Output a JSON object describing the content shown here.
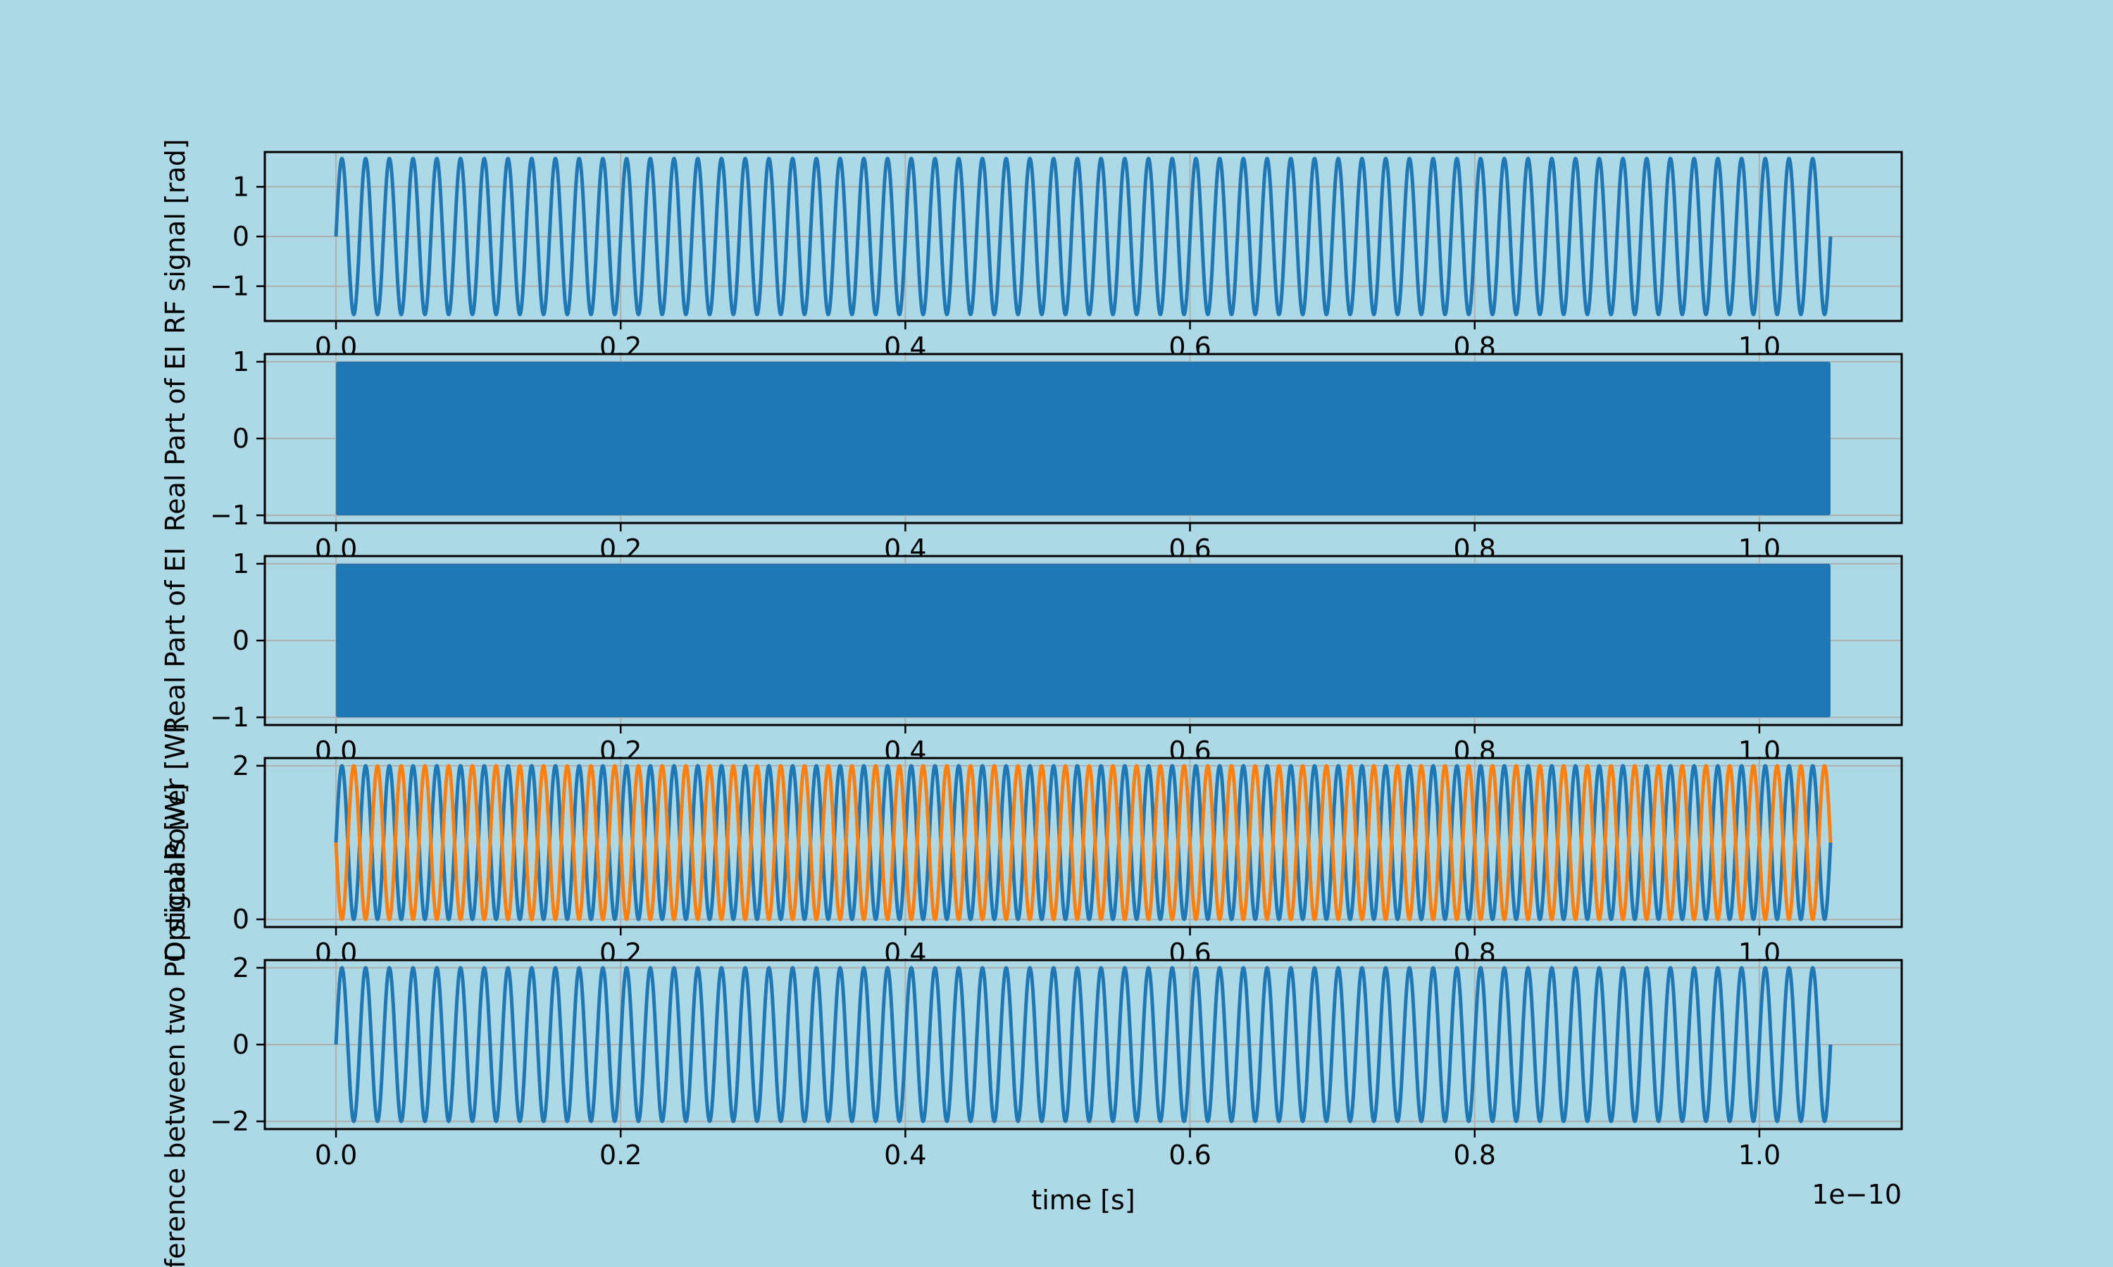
{
  "figure": {
    "background": "#add8e6",
    "series_colors": [
      "#1f77b4",
      "#ff7f0e"
    ],
    "grid_color": "#b0b0b0",
    "x_offset_text": "1e−10"
  },
  "chart_data": [
    {
      "type": "line",
      "ylabel": "RF signal [rad]",
      "xlabel": "",
      "xlim": [
        -0.05,
        1.1
      ],
      "ylim": [
        -1.7,
        1.7
      ],
      "xticks": [
        0.0,
        0.2,
        0.4,
        0.6,
        0.8,
        1.0
      ],
      "xtick_labels": [
        "0.0",
        "0.2",
        "0.4",
        "0.6",
        "0.8",
        "1.0"
      ],
      "yticks": [
        -1,
        0,
        1
      ],
      "ytick_labels": [
        "−1",
        "0",
        "1"
      ],
      "grid": true,
      "series": [
        {
          "color": "#1f77b4",
          "function": "sine",
          "amplitude": 1.57,
          "cycles": 63,
          "phase": 0,
          "offset": 0,
          "x": [
            0.0,
            1.05
          ]
        }
      ]
    },
    {
      "type": "line",
      "ylabel": "Real Part of EI",
      "xlabel": "",
      "xlim": [
        -0.05,
        1.1
      ],
      "ylim": [
        -1.1,
        1.1
      ],
      "xticks": [
        0.0,
        0.2,
        0.4,
        0.6,
        0.8,
        1.0
      ],
      "xtick_labels": [
        "0.0",
        "0.2",
        "0.4",
        "0.6",
        "0.8",
        "1.0"
      ],
      "yticks": [
        -1,
        0,
        1
      ],
      "ytick_labels": [
        "−1",
        "0",
        "1"
      ],
      "grid": true,
      "series": [
        {
          "color": "#1f77b4",
          "function": "dense carrier oscillation (unresolved)",
          "y_range": [
            -1,
            1
          ],
          "x": [
            0.0,
            1.05
          ]
        }
      ]
    },
    {
      "type": "line",
      "ylabel": "Real Part of EI",
      "xlabel": "",
      "xlim": [
        -0.05,
        1.1
      ],
      "ylim": [
        -1.1,
        1.1
      ],
      "xticks": [
        0.0,
        0.2,
        0.4,
        0.6,
        0.8,
        1.0
      ],
      "xtick_labels": [
        "0.0",
        "0.2",
        "0.4",
        "0.6",
        "0.8",
        "1.0"
      ],
      "yticks": [
        -1,
        0,
        1
      ],
      "ytick_labels": [
        "−1",
        "0",
        "1"
      ],
      "grid": true,
      "series": [
        {
          "color": "#1f77b4",
          "function": "dense carrier oscillation (unresolved)",
          "y_range": [
            -1,
            1
          ],
          "x": [
            0.0,
            1.05
          ]
        }
      ]
    },
    {
      "type": "line",
      "ylabel": "Optical Power [W]",
      "xlabel": "",
      "xlim": [
        -0.05,
        1.1
      ],
      "ylim": [
        -0.1,
        2.1
      ],
      "xticks": [
        0.0,
        0.2,
        0.4,
        0.6,
        0.8,
        1.0
      ],
      "xtick_labels": [
        "0.0",
        "0.2",
        "0.4",
        "0.6",
        "0.8",
        "1.0"
      ],
      "yticks": [
        0,
        2
      ],
      "ytick_labels": [
        "0",
        "2"
      ],
      "grid": true,
      "series": [
        {
          "color": "#1f77b4",
          "function": "sine",
          "amplitude": 1,
          "offset": 1,
          "cycles": 63,
          "phase": 0,
          "x": [
            0.0,
            1.05
          ]
        },
        {
          "color": "#ff7f0e",
          "function": "sine",
          "amplitude": 1,
          "offset": 1,
          "cycles": 63,
          "phase": 3.14159,
          "x": [
            0.0,
            1.05
          ]
        }
      ]
    },
    {
      "type": "line",
      "ylabel": "Difference between two PD signals [W]",
      "xlabel": "time [s]",
      "xlim": [
        -0.05,
        1.1
      ],
      "ylim": [
        -2.2,
        2.2
      ],
      "xticks": [
        0.0,
        0.2,
        0.4,
        0.6,
        0.8,
        1.0
      ],
      "xtick_labels": [
        "0.0",
        "0.2",
        "0.4",
        "0.6",
        "0.8",
        "1.0"
      ],
      "yticks": [
        -2,
        0,
        2
      ],
      "ytick_labels": [
        "−2",
        "0",
        "2"
      ],
      "grid": true,
      "series": [
        {
          "color": "#1f77b4",
          "function": "sine",
          "amplitude": 2,
          "cycles": 63,
          "phase": 0,
          "offset": 0,
          "x": [
            0.0,
            1.05
          ]
        }
      ]
    }
  ]
}
